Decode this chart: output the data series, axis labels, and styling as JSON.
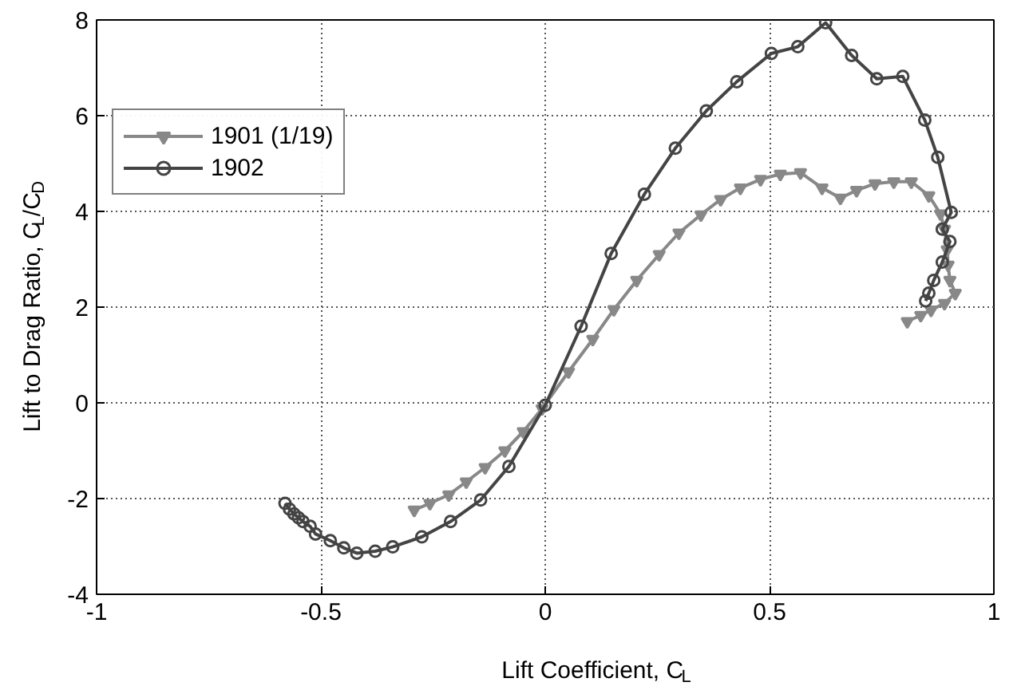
{
  "chart_data": {
    "type": "line",
    "xlabel": "Lift Coefficient, C$_{L}$",
    "ylabel": "Lift to Drag Ratio, C$_{L}$/C$_{D}$",
    "xlim": [
      -1,
      1
    ],
    "ylim": [
      -4,
      8
    ],
    "xticks": [
      -1,
      -0.5,
      0,
      0.5,
      1
    ],
    "yticks": [
      -4,
      -2,
      0,
      2,
      4,
      6,
      8
    ],
    "grid": true,
    "legend": "top left",
    "line_style": "solid",
    "series": [
      {
        "name": "1901 (1/19)",
        "color": "#888888",
        "marker": "triangle",
        "x": [
          -0.292,
          -0.257,
          -0.215,
          -0.176,
          -0.134,
          -0.09,
          -0.049,
          -0.007,
          0.052,
          0.106,
          0.153,
          0.204,
          0.254,
          0.298,
          0.347,
          0.391,
          0.435,
          0.48,
          0.524,
          0.569,
          0.617,
          0.658,
          0.694,
          0.735,
          0.777,
          0.816,
          0.855,
          0.881,
          0.89,
          0.896,
          0.898,
          0.902,
          0.914,
          0.89,
          0.86,
          0.837,
          0.807
        ],
        "values": [
          -2.24,
          -2.1,
          -1.92,
          -1.65,
          -1.35,
          -1.0,
          -0.6,
          -0.12,
          0.65,
          1.33,
          1.95,
          2.56,
          3.1,
          3.55,
          3.93,
          4.25,
          4.49,
          4.67,
          4.78,
          4.81,
          4.49,
          4.28,
          4.44,
          4.58,
          4.62,
          4.62,
          4.33,
          3.95,
          3.63,
          3.2,
          2.88,
          2.56,
          2.29,
          2.08,
          1.94,
          1.83,
          1.7
        ]
      },
      {
        "name": "1902",
        "color": "#444444",
        "marker": "circle",
        "x": [
          -0.58,
          -0.57,
          -0.56,
          -0.55,
          -0.54,
          -0.524,
          -0.512,
          -0.479,
          -0.449,
          -0.42,
          -0.379,
          -0.34,
          -0.275,
          -0.211,
          -0.144,
          -0.081,
          0.0,
          0.08,
          0.147,
          0.221,
          0.29,
          0.359,
          0.427,
          0.504,
          0.563,
          0.625,
          0.683,
          0.739,
          0.797,
          0.846,
          0.875,
          0.905,
          0.885,
          0.902,
          0.885,
          0.866,
          0.855,
          0.848
        ],
        "values": [
          -2.1,
          -2.22,
          -2.32,
          -2.4,
          -2.48,
          -2.58,
          -2.74,
          -2.88,
          -3.03,
          -3.14,
          -3.1,
          -3.01,
          -2.8,
          -2.48,
          -2.03,
          -1.33,
          -0.05,
          1.6,
          3.12,
          4.36,
          5.32,
          6.1,
          6.71,
          7.3,
          7.44,
          7.94,
          7.26,
          6.77,
          6.82,
          5.91,
          5.13,
          3.98,
          3.63,
          3.37,
          2.94,
          2.56,
          2.29,
          2.13
        ]
      }
    ]
  }
}
